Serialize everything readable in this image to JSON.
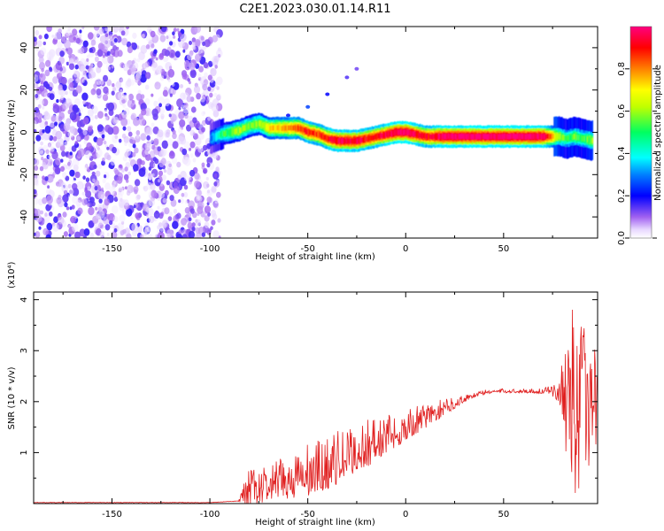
{
  "figure_title": "C2E1.2023.030.01.14.R11",
  "chart_data": [
    {
      "type": "heatmap",
      "xlabel": "Height of straight line (km)",
      "ylabel": "Frequency (Hz)",
      "xlim": [
        -190,
        98
      ],
      "ylim": [
        -50,
        50
      ],
      "xticks": [
        -150,
        -100,
        -50,
        0,
        50
      ],
      "yticks": [
        -40,
        -20,
        0,
        20,
        40
      ],
      "xtick_labels": [
        "-150",
        "-100",
        "-50",
        "0",
        "50"
      ],
      "ytick_labels": [
        "-40",
        "-20",
        "0",
        "20",
        "40"
      ],
      "colorbar": {
        "label": "Normalized spectral amplitude",
        "range": [
          0,
          1
        ],
        "ticks": [
          0.0,
          0.2,
          0.4,
          0.6,
          0.8
        ],
        "tick_labels": [
          "0.0",
          "0.2",
          "0.4",
          "0.6",
          "0.8"
        ],
        "colors": [
          "#ffffff",
          "#b070f0",
          "#0000ff",
          "#00ffff",
          "#00ff00",
          "#ffff00",
          "#ff8000",
          "#ff0000",
          "#ff0080"
        ]
      },
      "noise_region": {
        "x": [
          -190,
          -95
        ],
        "frequency": [
          -50,
          50
        ],
        "amplitude": [
          0,
          0.15
        ]
      },
      "ridge": {
        "x": [
          -100,
          -95,
          -90,
          -85,
          -80,
          -75,
          -70,
          -65,
          -60,
          -55,
          -50,
          -45,
          -40,
          -35,
          -30,
          -25,
          -20,
          -15,
          -10,
          -5,
          0,
          5,
          10,
          15,
          20,
          30,
          40,
          50,
          60,
          70,
          78,
          82,
          86,
          90,
          95
        ],
        "frequency": [
          -3,
          -1,
          0,
          1,
          3,
          4,
          2,
          2,
          2,
          2,
          0,
          -1,
          -3,
          -4,
          -4,
          -4,
          -3,
          -2,
          -1,
          0,
          0,
          -1,
          -2,
          -2,
          -2,
          -2,
          -2,
          -2,
          -2,
          -2,
          -2,
          -3,
          -2,
          -3,
          -4
        ],
        "amplitude": [
          0.3,
          0.45,
          0.55,
          0.6,
          0.55,
          0.6,
          0.7,
          0.75,
          0.8,
          0.85,
          0.9,
          0.85,
          0.9,
          0.95,
          0.95,
          0.95,
          0.9,
          0.9,
          0.95,
          1.0,
          1.0,
          0.95,
          0.9,
          0.95,
          1.0,
          1.0,
          1.0,
          1.0,
          1.0,
          1.0,
          0.6,
          0.5,
          0.55,
          0.5,
          0.6
        ]
      },
      "harmonic": {
        "x": [
          -70,
          -60,
          -50,
          -40,
          -30,
          -25
        ],
        "frequency": [
          5,
          8,
          12,
          18,
          26,
          30
        ],
        "amplitude": [
          0.1,
          0.15,
          0.2,
          0.15,
          0.1,
          0.08
        ]
      }
    },
    {
      "type": "line",
      "xlabel": "Height of straight line (km)",
      "ylabel": "SNR (10 * v/v)",
      "y_multiplier": "(x10⁴)",
      "xlim": [
        -190,
        98
      ],
      "ylim": [
        0,
        4.15
      ],
      "xticks": [
        -150,
        -100,
        -50,
        0,
        50
      ],
      "xtick_labels": [
        "-150",
        "-100",
        "-50",
        "0",
        "50"
      ],
      "yticks": [
        1,
        2,
        3,
        4
      ],
      "ytick_labels": [
        "1",
        "2",
        "3",
        "4"
      ],
      "line_color": "#e02020",
      "envelope": {
        "x": [
          -190,
          -100,
          -85,
          -80,
          -75,
          -70,
          -65,
          -60,
          -55,
          -50,
          -45,
          -40,
          -35,
          -30,
          -25,
          -20,
          -15,
          -10,
          -5,
          0,
          5,
          10,
          15,
          20,
          25,
          30,
          35,
          40,
          45,
          50,
          55,
          60,
          65,
          70,
          75,
          78,
          80,
          82,
          84,
          86,
          88,
          90,
          92,
          95,
          98
        ],
        "y_mean": [
          0.02,
          0.02,
          0.05,
          0.2,
          0.25,
          0.3,
          0.35,
          0.4,
          0.45,
          0.5,
          0.55,
          0.65,
          0.75,
          0.85,
          0.95,
          1.05,
          1.15,
          1.25,
          1.35,
          1.45,
          1.55,
          1.65,
          1.75,
          1.85,
          1.95,
          2.05,
          2.12,
          2.17,
          2.2,
          2.2,
          2.2,
          2.2,
          2.2,
          2.2,
          2.2,
          2.2,
          2.2,
          2.2,
          2.2,
          2.0,
          2.0,
          2.0,
          2.0,
          2.0,
          2.0
        ],
        "y_spread": [
          0.01,
          0.01,
          0.05,
          0.5,
          0.45,
          0.45,
          0.5,
          0.55,
          0.6,
          0.65,
          0.7,
          0.65,
          0.65,
          0.6,
          0.6,
          0.6,
          0.55,
          0.5,
          0.45,
          0.4,
          0.35,
          0.3,
          0.25,
          0.2,
          0.15,
          0.1,
          0.08,
          0.06,
          0.05,
          0.05,
          0.05,
          0.05,
          0.06,
          0.08,
          0.1,
          0.2,
          0.6,
          1.6,
          1.8,
          1.8,
          1.8,
          1.6,
          1.4,
          1.2,
          1.0
        ]
      }
    }
  ]
}
